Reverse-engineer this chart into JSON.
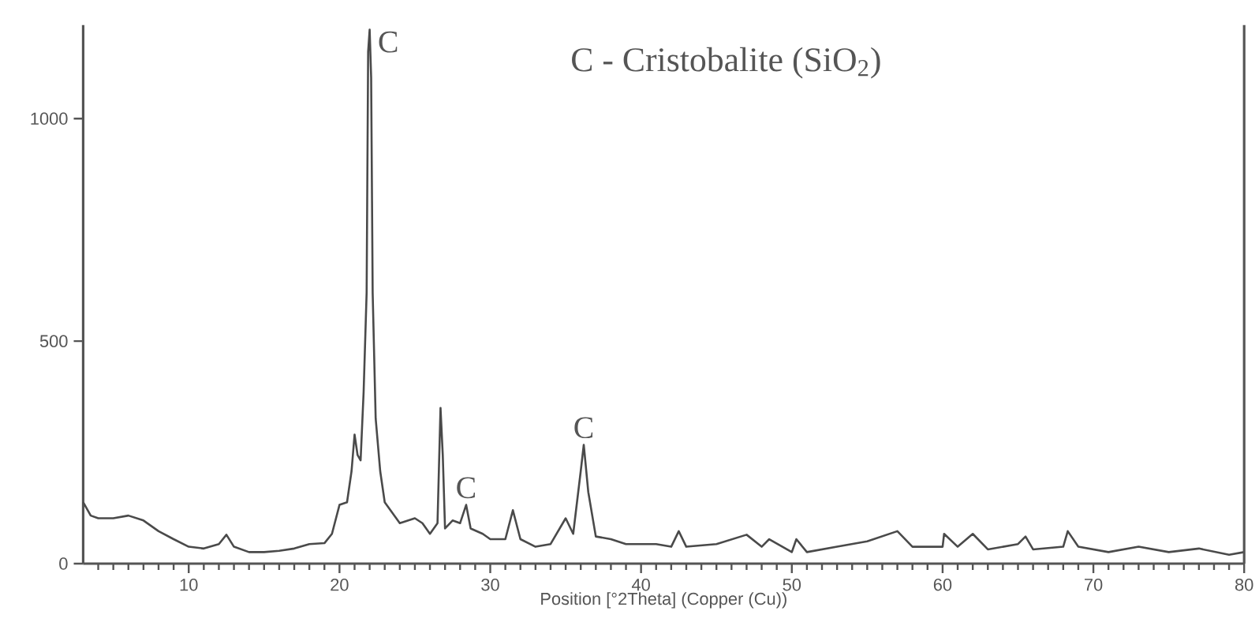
{
  "chart_data": {
    "type": "line",
    "xlabel": "Position [°2Theta] (Copper (Cu))",
    "color": "#4a4a4a",
    "xlim": [
      3,
      80
    ],
    "ylim": [
      0,
      1210
    ],
    "xticks": [
      {
        "value": 4,
        "label": null
      },
      {
        "value": 5,
        "label": null
      },
      {
        "value": 6,
        "label": null
      },
      {
        "value": 7,
        "label": null
      },
      {
        "value": 8,
        "label": null
      },
      {
        "value": 9,
        "label": null
      },
      10,
      {
        "value": 11,
        "label": null
      },
      {
        "value": 12,
        "label": null
      },
      {
        "value": 13,
        "label": null
      },
      {
        "value": 14,
        "label": null
      },
      {
        "value": 15,
        "label": null
      },
      {
        "value": 16,
        "label": null
      },
      {
        "value": 17,
        "label": null
      },
      {
        "value": 18,
        "label": null
      },
      {
        "value": 19,
        "label": null
      },
      20,
      {
        "value": 21,
        "label": null
      },
      {
        "value": 22,
        "label": null
      },
      {
        "value": 23,
        "label": null
      },
      {
        "value": 24,
        "label": null
      },
      {
        "value": 25,
        "label": null
      },
      {
        "value": 26,
        "label": null
      },
      {
        "value": 27,
        "label": null
      },
      {
        "value": 28,
        "label": null
      },
      {
        "value": 29,
        "label": null
      },
      30,
      {
        "value": 31,
        "label": null
      },
      {
        "value": 32,
        "label": null
      },
      {
        "value": 33,
        "label": null
      },
      {
        "value": 34,
        "label": null
      },
      {
        "value": 35,
        "label": null
      },
      {
        "value": 36,
        "label": null
      },
      {
        "value": 37,
        "label": null
      },
      {
        "value": 38,
        "label": null
      },
      {
        "value": 39,
        "label": null
      },
      40,
      {
        "value": 41,
        "label": null
      },
      {
        "value": 42,
        "label": null
      },
      {
        "value": 43,
        "label": null
      },
      {
        "value": 44,
        "label": null
      },
      {
        "value": 45,
        "label": null
      },
      {
        "value": 46,
        "label": null
      },
      {
        "value": 47,
        "label": null
      },
      {
        "value": 48,
        "label": null
      },
      {
        "value": 49,
        "label": null
      },
      50,
      {
        "value": 51,
        "label": null
      },
      {
        "value": 52,
        "label": null
      },
      {
        "value": 53,
        "label": null
      },
      {
        "value": 54,
        "label": null
      },
      {
        "value": 55,
        "label": null
      },
      {
        "value": 56,
        "label": null
      },
      {
        "value": 57,
        "label": null
      },
      {
        "value": 58,
        "label": null
      },
      {
        "value": 59,
        "label": null
      },
      60,
      {
        "value": 61,
        "label": null
      },
      {
        "value": 62,
        "label": null
      },
      {
        "value": 63,
        "label": null
      },
      {
        "value": 64,
        "label": null
      },
      {
        "value": 65,
        "label": null
      },
      {
        "value": 66,
        "label": null
      },
      {
        "value": 67,
        "label": null
      },
      {
        "value": 68,
        "label": null
      },
      {
        "value": 69,
        "label": null
      },
      70,
      {
        "value": 71,
        "label": null
      },
      {
        "value": 72,
        "label": null
      },
      {
        "value": 73,
        "label": null
      },
      {
        "value": 74,
        "label": null
      },
      {
        "value": 75,
        "label": null
      },
      {
        "value": 76,
        "label": null
      },
      {
        "value": 77,
        "label": null
      },
      {
        "value": 78,
        "label": null
      },
      {
        "value": 79,
        "label": null
      },
      80
    ],
    "yticks": [
      0,
      500,
      1000
    ],
    "x": [
      3,
      3.5,
      4,
      5,
      6,
      7,
      8,
      9,
      10,
      11,
      12,
      12.5,
      13,
      14,
      15,
      16,
      17,
      18,
      19,
      19.5,
      20,
      20.5,
      20.8,
      21,
      21.2,
      21.4,
      21.6,
      21.8,
      21.9,
      22.0,
      22.1,
      22.2,
      22.4,
      22.7,
      23,
      24,
      25,
      25.5,
      26,
      26.5,
      26.7,
      26.85,
      27,
      27.5,
      28,
      28.4,
      28.7,
      29.5,
      30,
      31,
      31.5,
      32,
      33,
      34,
      35,
      35.5,
      36,
      36.2,
      36.5,
      37,
      38,
      39,
      40,
      41,
      42,
      42.5,
      43,
      45,
      47,
      48,
      48.5,
      50,
      50.3,
      51,
      53,
      55,
      57,
      58,
      60,
      60.1,
      61,
      62,
      63,
      65,
      65.5,
      66,
      68,
      68.3,
      69,
      71,
      73,
      75,
      77,
      79,
      80
    ],
    "values": [
      138,
      108,
      102,
      102,
      108,
      97,
      73,
      55,
      38,
      34,
      44,
      65,
      38,
      26,
      26,
      29,
      34,
      44,
      46,
      67,
      132,
      138,
      208,
      290,
      244,
      232,
      385,
      609,
      1150,
      1200,
      1092,
      609,
      326,
      208,
      138,
      91,
      102,
      91,
      67,
      91,
      350,
      244,
      79,
      97,
      91,
      132,
      79,
      67,
      55,
      55,
      120,
      55,
      38,
      44,
      102,
      67,
      208,
      267,
      161,
      61,
      55,
      44,
      44,
      44,
      38,
      73,
      38,
      44,
      65,
      38,
      55,
      26,
      55,
      26,
      38,
      50,
      73,
      38,
      38,
      67,
      38,
      67,
      32,
      44,
      61,
      32,
      38,
      73,
      38,
      26,
      38,
      26,
      34,
      20,
      26
    ],
    "annotations": [
      "C - Cristobalite (SiO$_{2}$)",
      {
        "text": "C",
        "x": 22.0,
        "y": 1200
      },
      {
        "text": "C",
        "x": 28.4,
        "y": 132
      },
      {
        "text": "C",
        "x": 36.2,
        "y": 267
      }
    ]
  }
}
